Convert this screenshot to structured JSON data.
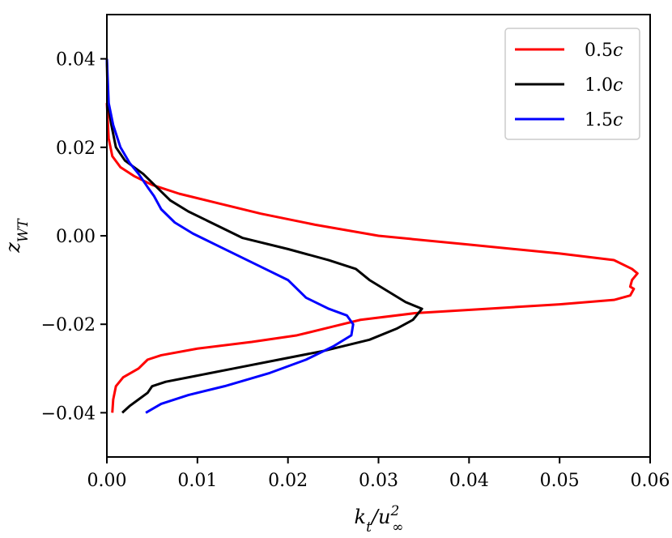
{
  "chart_data": {
    "type": "line",
    "title": "",
    "xlabel": "k_t/u_∞^2",
    "ylabel": "z_WT",
    "xlim": [
      0.0,
      0.06
    ],
    "ylim": [
      -0.05,
      0.05
    ],
    "x_ticks": [
      0.0,
      0.01,
      0.02,
      0.03,
      0.04,
      0.05,
      0.06
    ],
    "x_tick_labels": [
      "0.00",
      "0.01",
      "0.02",
      "0.03",
      "0.04",
      "0.05",
      "0.06"
    ],
    "y_ticks": [
      -0.04,
      -0.02,
      0.0,
      0.02,
      0.04
    ],
    "y_tick_labels": [
      "−0.04",
      "−0.02",
      "0.00",
      "0.02",
      "0.04"
    ],
    "grid": false,
    "legend_position": "top-right",
    "series": [
      {
        "name": "0.5c",
        "color": "#ff0000",
        "points": [
          [
            0.0006,
            -0.04
          ],
          [
            0.0007,
            -0.037
          ],
          [
            0.001,
            -0.034
          ],
          [
            0.0018,
            -0.032
          ],
          [
            0.0035,
            -0.03
          ],
          [
            0.0045,
            -0.028
          ],
          [
            0.006,
            -0.027
          ],
          [
            0.01,
            -0.0255
          ],
          [
            0.016,
            -0.024
          ],
          [
            0.021,
            -0.0225
          ],
          [
            0.025,
            -0.0205
          ],
          [
            0.028,
            -0.019
          ],
          [
            0.034,
            -0.0175
          ],
          [
            0.042,
            -0.0165
          ],
          [
            0.05,
            -0.0155
          ],
          [
            0.056,
            -0.0145
          ],
          [
            0.0578,
            -0.0135
          ],
          [
            0.0582,
            -0.012
          ],
          [
            0.0578,
            -0.0115
          ],
          [
            0.058,
            -0.01
          ],
          [
            0.0586,
            -0.0085
          ],
          [
            0.058,
            -0.0075
          ],
          [
            0.056,
            -0.0055
          ],
          [
            0.05,
            -0.004
          ],
          [
            0.04,
            -0.002
          ],
          [
            0.03,
            0.0
          ],
          [
            0.023,
            0.0025
          ],
          [
            0.017,
            0.005
          ],
          [
            0.012,
            0.0075
          ],
          [
            0.008,
            0.0095
          ],
          [
            0.005,
            0.0115
          ],
          [
            0.003,
            0.0135
          ],
          [
            0.0015,
            0.0155
          ],
          [
            0.0006,
            0.018
          ],
          [
            0.0002,
            0.022
          ],
          [
            0.0001,
            0.026
          ],
          [
            0.0,
            0.03
          ]
        ]
      },
      {
        "name": "1.0c",
        "color": "#000000",
        "points": [
          [
            0.0017,
            -0.04
          ],
          [
            0.0025,
            -0.0385
          ],
          [
            0.0035,
            -0.037
          ],
          [
            0.0045,
            -0.0355
          ],
          [
            0.005,
            -0.034
          ],
          [
            0.0065,
            -0.033
          ],
          [
            0.009,
            -0.032
          ],
          [
            0.014,
            -0.03
          ],
          [
            0.019,
            -0.028
          ],
          [
            0.024,
            -0.026
          ],
          [
            0.029,
            -0.0235
          ],
          [
            0.032,
            -0.021
          ],
          [
            0.0338,
            -0.019
          ],
          [
            0.0348,
            -0.0165
          ],
          [
            0.033,
            -0.015
          ],
          [
            0.031,
            -0.0125
          ],
          [
            0.029,
            -0.01
          ],
          [
            0.0275,
            -0.0075
          ],
          [
            0.0245,
            -0.0055
          ],
          [
            0.02,
            -0.003
          ],
          [
            0.015,
            -0.0005
          ],
          [
            0.012,
            0.0025
          ],
          [
            0.009,
            0.0055
          ],
          [
            0.007,
            0.008
          ],
          [
            0.0055,
            0.011
          ],
          [
            0.004,
            0.014
          ],
          [
            0.002,
            0.017
          ],
          [
            0.001,
            0.02
          ],
          [
            0.0005,
            0.025
          ],
          [
            0.0001,
            0.03
          ],
          [
            0.0,
            0.04
          ]
        ]
      },
      {
        "name": "1.5c",
        "color": "#0000ff",
        "points": [
          [
            0.0043,
            -0.04
          ],
          [
            0.006,
            -0.038
          ],
          [
            0.009,
            -0.036
          ],
          [
            0.013,
            -0.034
          ],
          [
            0.018,
            -0.031
          ],
          [
            0.022,
            -0.028
          ],
          [
            0.025,
            -0.025
          ],
          [
            0.027,
            -0.0225
          ],
          [
            0.0272,
            -0.02
          ],
          [
            0.0265,
            -0.018
          ],
          [
            0.0245,
            -0.0165
          ],
          [
            0.022,
            -0.014
          ],
          [
            0.02,
            -0.01
          ],
          [
            0.018,
            -0.008
          ],
          [
            0.015,
            -0.005
          ],
          [
            0.012,
            -0.002
          ],
          [
            0.0095,
            0.0005
          ],
          [
            0.0075,
            0.003
          ],
          [
            0.006,
            0.006
          ],
          [
            0.0052,
            0.009
          ],
          [
            0.0045,
            0.011
          ],
          [
            0.0035,
            0.014
          ],
          [
            0.0025,
            0.0165
          ],
          [
            0.0015,
            0.02
          ],
          [
            0.0007,
            0.025
          ],
          [
            0.0002,
            0.03
          ],
          [
            0.0,
            0.04
          ]
        ]
      }
    ]
  }
}
